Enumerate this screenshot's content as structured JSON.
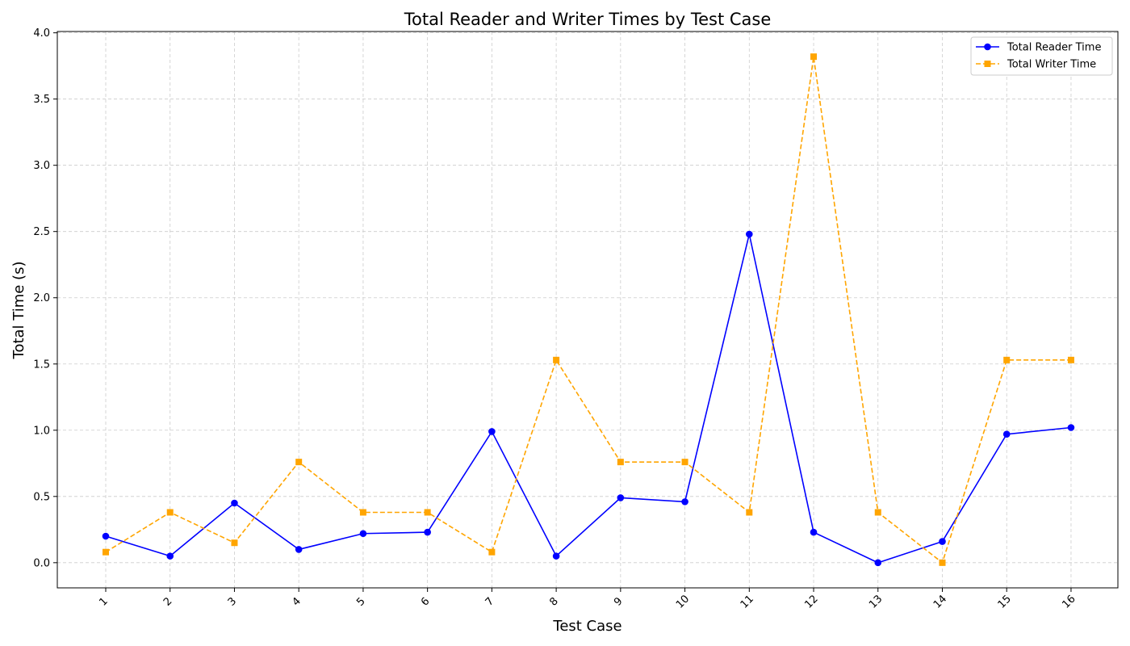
{
  "chart_data": {
    "type": "line",
    "title": "Total Reader and Writer Times by Test Case",
    "xlabel": "Test Case",
    "ylabel": "Total Time (s)",
    "categories": [
      "1",
      "2",
      "3",
      "4",
      "5",
      "6",
      "7",
      "8",
      "9",
      "10",
      "11",
      "12",
      "13",
      "14",
      "15",
      "16"
    ],
    "ylim": [
      -0.19,
      4.01
    ],
    "yticks": [
      0.0,
      0.5,
      1.0,
      1.5,
      2.0,
      2.5,
      3.0,
      3.5,
      4.0
    ],
    "ytick_labels": [
      "0.0",
      "0.5",
      "1.0",
      "1.5",
      "2.0",
      "2.5",
      "3.0",
      "3.5",
      "4.0"
    ],
    "grid": true,
    "legend_position": "top-right",
    "series": [
      {
        "name": "Total Reader Time",
        "color": "#0000ff",
        "line_style": "solid",
        "marker": "circle",
        "values": [
          0.2,
          0.05,
          0.45,
          0.1,
          0.22,
          0.23,
          0.99,
          0.05,
          0.49,
          0.46,
          2.48,
          0.23,
          0.0,
          0.16,
          0.97,
          1.02
        ]
      },
      {
        "name": "Total Writer Time",
        "color": "#ffa500",
        "line_style": "dashed",
        "marker": "square",
        "values": [
          0.08,
          0.38,
          0.15,
          0.76,
          0.38,
          0.38,
          0.08,
          1.53,
          0.76,
          0.76,
          0.38,
          3.82,
          0.38,
          0.0,
          1.53,
          1.53
        ]
      }
    ]
  }
}
